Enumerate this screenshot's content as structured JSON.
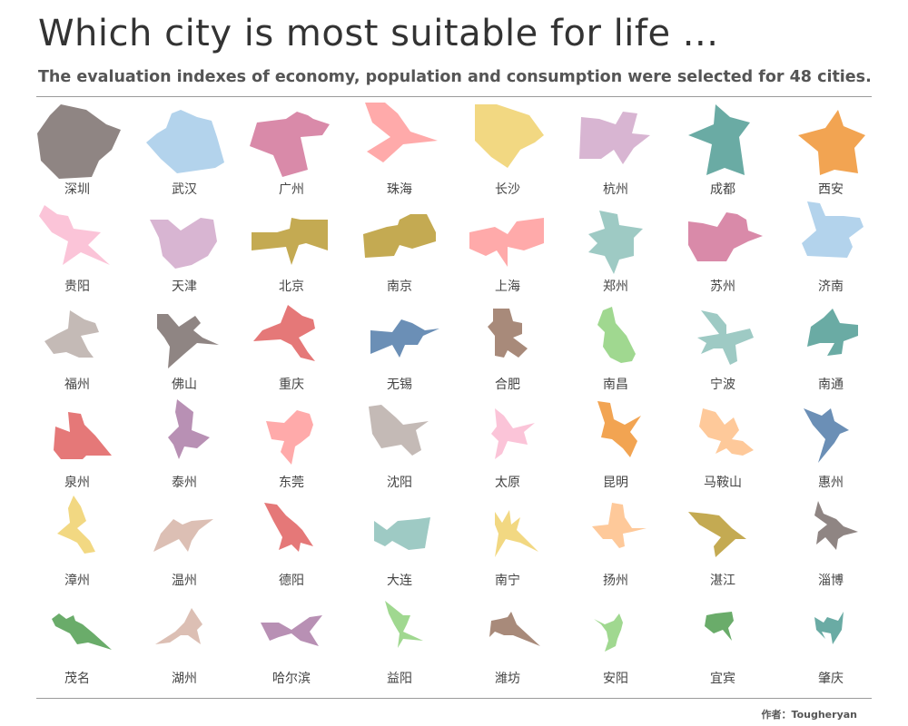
{
  "header": {
    "title": "Which city is most suitable for life ...",
    "subtitle": "The evaluation indexes of economy, population and consumption were selected for 48 cities."
  },
  "footer": {
    "author": "作者：Tougheryan"
  },
  "chart_data": {
    "type": "small-multiples-polygon",
    "title": "Which city is most suitable for life ...",
    "subtitle": "The evaluation indexes of economy, population and consumption were selected for 48 cities.",
    "columns": 8,
    "cities": [
      {
        "name": "深圳",
        "color": "#8f8583"
      },
      {
        "name": "武汉",
        "color": "#b3d3ec"
      },
      {
        "name": "广州",
        "color": "#d98aa9"
      },
      {
        "name": "珠海",
        "color": "#ffaaaa"
      },
      {
        "name": "长沙",
        "color": "#f2d882"
      },
      {
        "name": "杭州",
        "color": "#d8b5d2"
      },
      {
        "name": "成都",
        "color": "#6aaba4"
      },
      {
        "name": "西安",
        "color": "#f2a452"
      },
      {
        "name": "贵阳",
        "color": "#fbc4d8"
      },
      {
        "name": "天津",
        "color": "#d8b5d2"
      },
      {
        "name": "北京",
        "color": "#c4aa52"
      },
      {
        "name": "南京",
        "color": "#c4aa52"
      },
      {
        "name": "上海",
        "color": "#ffaaaa"
      },
      {
        "name": "郑州",
        "color": "#9ecac4"
      },
      {
        "name": "苏州",
        "color": "#d98aa9"
      },
      {
        "name": "济南",
        "color": "#b3d3ec"
      },
      {
        "name": "福州",
        "color": "#c4bab6"
      },
      {
        "name": "佛山",
        "color": "#8f8583"
      },
      {
        "name": "重庆",
        "color": "#e57878"
      },
      {
        "name": "无锡",
        "color": "#6b8fb6"
      },
      {
        "name": "合肥",
        "color": "#a88a7a"
      },
      {
        "name": "南昌",
        "color": "#a0d890"
      },
      {
        "name": "宁波",
        "color": "#9ecac4"
      },
      {
        "name": "南通",
        "color": "#6aaba4"
      },
      {
        "name": "泉州",
        "color": "#e57878"
      },
      {
        "name": "泰州",
        "color": "#b890b4"
      },
      {
        "name": "东莞",
        "color": "#ffaaaa"
      },
      {
        "name": "沈阳",
        "color": "#c4bab6"
      },
      {
        "name": "太原",
        "color": "#fbc4d8"
      },
      {
        "name": "昆明",
        "color": "#f2a452"
      },
      {
        "name": "马鞍山",
        "color": "#fec99a"
      },
      {
        "name": "惠州",
        "color": "#6b8fb6"
      },
      {
        "name": "漳州",
        "color": "#f2d882"
      },
      {
        "name": "温州",
        "color": "#dcbfb4"
      },
      {
        "name": "德阳",
        "color": "#e57878"
      },
      {
        "name": "大连",
        "color": "#9ecac4"
      },
      {
        "name": "南宁",
        "color": "#f2d882"
      },
      {
        "name": "扬州",
        "color": "#fec99a"
      },
      {
        "name": "湛江",
        "color": "#c4aa52"
      },
      {
        "name": "淄博",
        "color": "#8f8583"
      },
      {
        "name": "茂名",
        "color": "#6aac6a"
      },
      {
        "name": "湖州",
        "color": "#dcbfb4"
      },
      {
        "name": "哈尔滨",
        "color": "#b890b4"
      },
      {
        "name": "益阳",
        "color": "#a0d890"
      },
      {
        "name": "潍坊",
        "color": "#a88a7a"
      },
      {
        "name": "安阳",
        "color": "#a0d890"
      },
      {
        "name": "宜宾",
        "color": "#6aac6a"
      },
      {
        "name": "肇庆",
        "color": "#6aaba4"
      }
    ]
  }
}
